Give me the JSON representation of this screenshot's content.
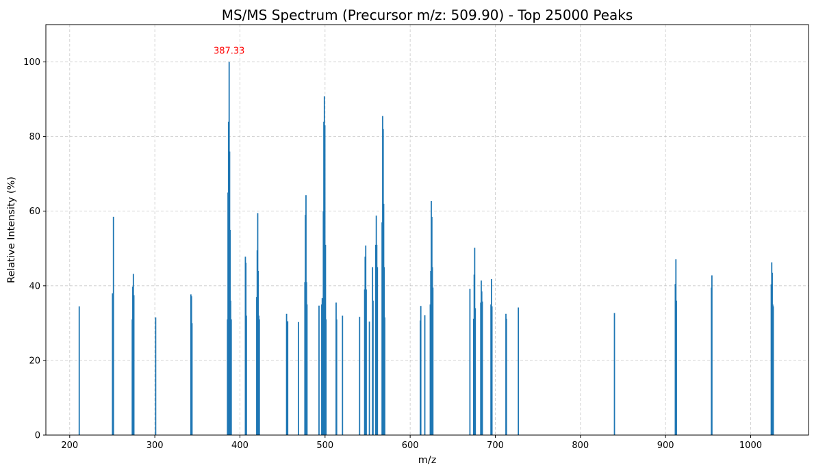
{
  "chart_data": {
    "type": "bar",
    "title": "MS/MS Spectrum (Precursor m/z: 509.90) - Top 25000 Peaks",
    "xlabel": "m/z",
    "ylabel": "Relative Intensity (%)",
    "xlim": [
      172,
      1068
    ],
    "ylim": [
      0,
      110
    ],
    "xticks": [
      200,
      300,
      400,
      500,
      600,
      700,
      800,
      900,
      1000
    ],
    "yticks": [
      0,
      20,
      40,
      60,
      80,
      100
    ],
    "grid": true,
    "bar_color": "#1f77b4",
    "annotation": {
      "x": 387.33,
      "y": 100,
      "text": "387.33",
      "color": "#ff0000"
    },
    "peaks": [
      [
        211.2,
        34.5
      ],
      [
        250.3,
        38
      ],
      [
        250.8,
        31
      ],
      [
        251.4,
        58.5
      ],
      [
        273.5,
        31
      ],
      [
        274.1,
        39.8
      ],
      [
        274.8,
        43.2
      ],
      [
        275.4,
        37.5
      ],
      [
        301.0,
        31.5
      ],
      [
        342.4,
        37.7
      ],
      [
        343.1,
        37.2
      ],
      [
        343.7,
        30
      ],
      [
        385.4,
        31
      ],
      [
        386.0,
        65
      ],
      [
        386.6,
        84
      ],
      [
        387.33,
        100
      ],
      [
        387.9,
        76
      ],
      [
        388.5,
        55
      ],
      [
        389.1,
        36
      ],
      [
        389.8,
        31
      ],
      [
        406.4,
        47.8
      ],
      [
        407.0,
        46.2
      ],
      [
        407.6,
        32
      ],
      [
        419.7,
        37
      ],
      [
        420.3,
        49.5
      ],
      [
        420.9,
        59.5
      ],
      [
        421.5,
        44
      ],
      [
        422.2,
        32
      ],
      [
        422.8,
        31
      ],
      [
        454.8,
        32.5
      ],
      [
        455.5,
        30.2
      ],
      [
        456.1,
        30.5
      ],
      [
        468.7,
        30.3
      ],
      [
        476.3,
        41
      ],
      [
        476.9,
        59
      ],
      [
        477.6,
        64.3
      ],
      [
        478.2,
        41
      ],
      [
        478.8,
        35
      ],
      [
        492.9,
        34.7
      ],
      [
        496.1,
        35
      ],
      [
        496.7,
        36.7
      ],
      [
        497.3,
        36.5
      ],
      [
        498.0,
        60
      ],
      [
        498.6,
        84
      ],
      [
        499.2,
        90.8
      ],
      [
        499.8,
        83
      ],
      [
        500.5,
        51
      ],
      [
        501.1,
        31
      ],
      [
        513.0,
        35.5
      ],
      [
        513.6,
        31
      ],
      [
        520.5,
        32
      ],
      [
        540.6,
        31.7
      ],
      [
        546.5,
        39
      ],
      [
        547.1,
        47.8
      ],
      [
        547.8,
        50.8
      ],
      [
        548.4,
        39
      ],
      [
        552.1,
        30.4
      ],
      [
        555.8,
        45
      ],
      [
        556.4,
        36
      ],
      [
        559.6,
        51
      ],
      [
        560.2,
        58.8
      ],
      [
        560.8,
        51
      ],
      [
        561.5,
        45
      ],
      [
        567.0,
        57
      ],
      [
        567.7,
        85.5
      ],
      [
        568.3,
        82
      ],
      [
        568.9,
        62
      ],
      [
        569.5,
        45
      ],
      [
        570.1,
        31.5
      ],
      [
        611.9,
        30.7
      ],
      [
        612.5,
        34.6
      ],
      [
        617.2,
        32.1
      ],
      [
        623.6,
        35
      ],
      [
        624.2,
        44
      ],
      [
        624.8,
        62.7
      ],
      [
        625.5,
        58.5
      ],
      [
        626.1,
        45
      ],
      [
        626.7,
        39.5
      ],
      [
        670.2,
        39.2
      ],
      [
        674.6,
        31.2
      ],
      [
        675.2,
        43
      ],
      [
        675.8,
        50.2
      ],
      [
        676.5,
        34
      ],
      [
        682.9,
        35.5
      ],
      [
        683.5,
        41.4
      ],
      [
        684.1,
        38.5
      ],
      [
        684.8,
        35.8
      ],
      [
        694.9,
        35
      ],
      [
        695.5,
        41.8
      ],
      [
        696.1,
        34.5
      ],
      [
        712.5,
        32.5
      ],
      [
        713.1,
        31.2
      ],
      [
        727.1,
        34.2
      ],
      [
        840.0,
        32.7
      ],
      [
        911.5,
        40.5
      ],
      [
        912.2,
        47.1
      ],
      [
        912.8,
        36
      ],
      [
        953.9,
        39.5
      ],
      [
        954.5,
        42.8
      ],
      [
        1024.2,
        40.4
      ],
      [
        1024.8,
        46.3
      ],
      [
        1025.4,
        43.5
      ],
      [
        1026.0,
        35
      ],
      [
        1026.6,
        34.5
      ]
    ]
  }
}
